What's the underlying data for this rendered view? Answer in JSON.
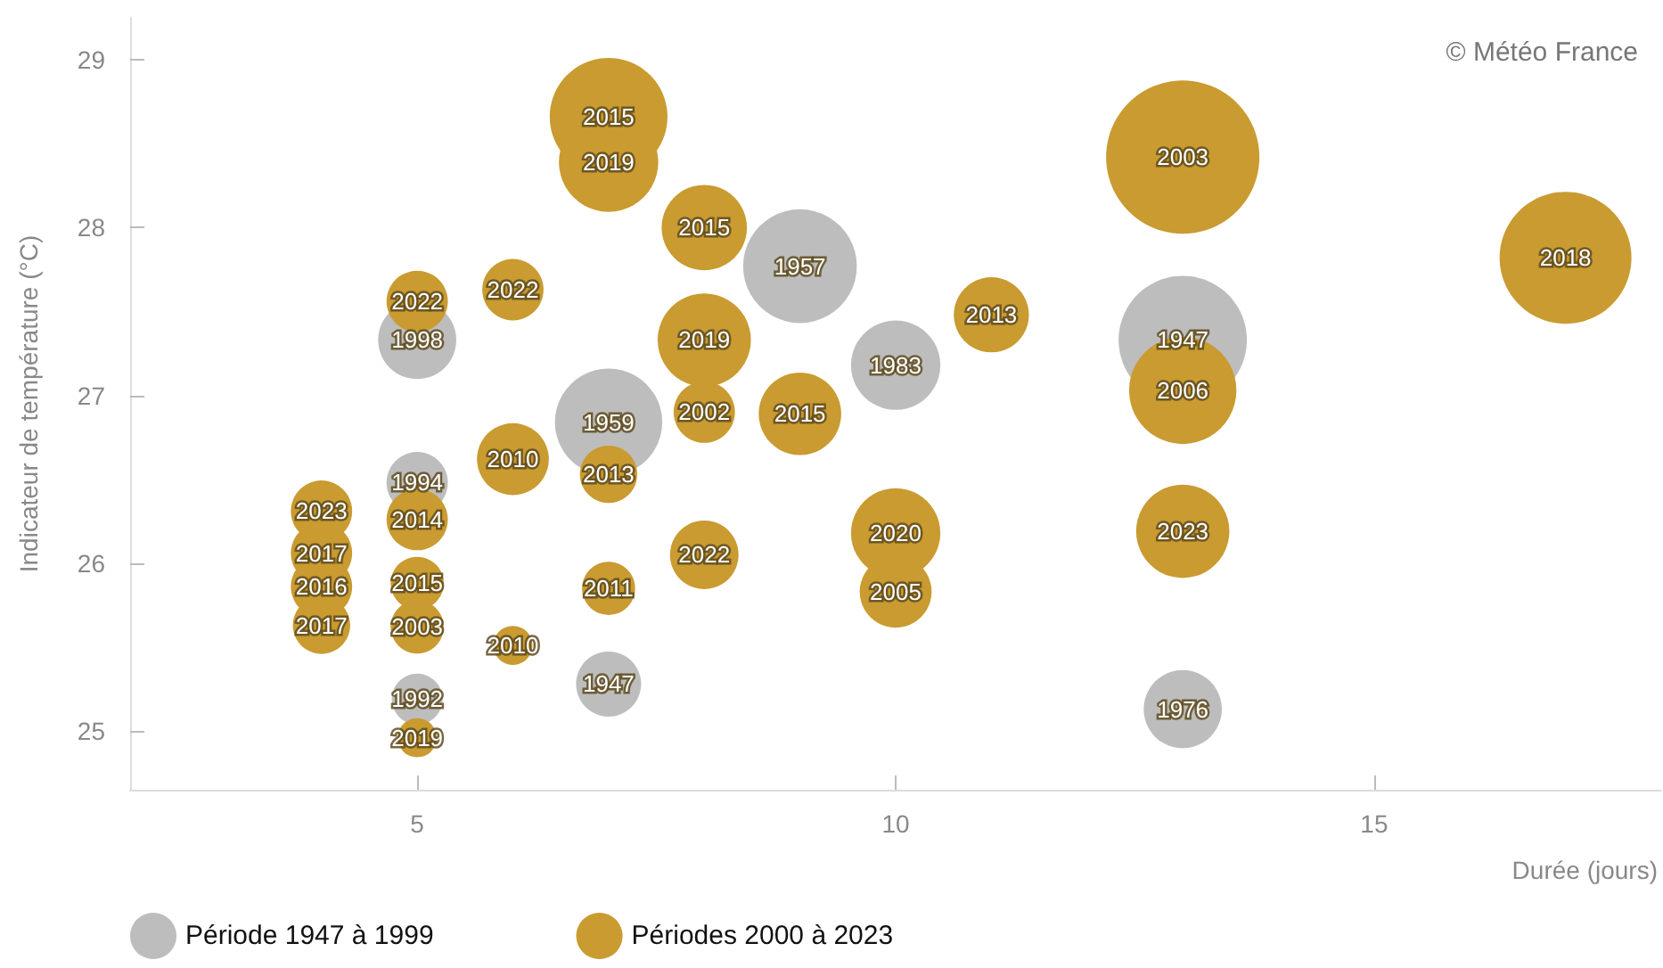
{
  "chart_data": {
    "type": "bubble",
    "xlabel": "Durée (jours)",
    "ylabel": "Indicateur de température (°C)",
    "annotations": [
      "© Météo France",
      {
        "text": "1998",
        "x": 5,
        "y": 27.33
      },
      {
        "text": "1957",
        "x": 9,
        "y": 27.77
      },
      {
        "text": "1959",
        "x": 7,
        "y": 26.84
      },
      {
        "text": "1983",
        "x": 10,
        "y": 27.18
      },
      {
        "text": "1947",
        "x": 13,
        "y": 27.33
      },
      {
        "text": "1994",
        "x": 5,
        "y": 26.48
      },
      {
        "text": "1992",
        "x": 5,
        "y": 25.19
      },
      {
        "text": "1947",
        "x": 7,
        "y": 25.28
      },
      {
        "text": "1976",
        "x": 13,
        "y": 25.13
      },
      {
        "text": "2015",
        "x": 7,
        "y": 28.66
      },
      {
        "text": "2019",
        "x": 7,
        "y": 28.39
      },
      {
        "text": "2015",
        "x": 8,
        "y": 28.0
      },
      {
        "text": "2022",
        "x": 5,
        "y": 27.56
      },
      {
        "text": "2022",
        "x": 6,
        "y": 27.63
      },
      {
        "text": "2019",
        "x": 8,
        "y": 27.33
      },
      {
        "text": "2002",
        "x": 8,
        "y": 26.9
      },
      {
        "text": "2015",
        "x": 9,
        "y": 26.89
      },
      {
        "text": "2013",
        "x": 11,
        "y": 27.48
      },
      {
        "text": "2003",
        "x": 13,
        "y": 28.42
      },
      {
        "text": "2018",
        "x": 17,
        "y": 27.82
      },
      {
        "text": "2006",
        "x": 13,
        "y": 27.03
      },
      {
        "text": "2010",
        "x": 6,
        "y": 26.62
      },
      {
        "text": "2013",
        "x": 7,
        "y": 26.53
      },
      {
        "text": "2023",
        "x": 4,
        "y": 26.31
      },
      {
        "text": "2017",
        "x": 4,
        "y": 26.06
      },
      {
        "text": "2016",
        "x": 4,
        "y": 25.86
      },
      {
        "text": "2017",
        "x": 4,
        "y": 25.63
      },
      {
        "text": "2014",
        "x": 5,
        "y": 26.26
      },
      {
        "text": "2015",
        "x": 5,
        "y": 25.88
      },
      {
        "text": "2003",
        "x": 5,
        "y": 25.62
      },
      {
        "text": "2010",
        "x": 6,
        "y": 25.51
      },
      {
        "text": "2019",
        "x": 5,
        "y": 24.96
      },
      {
        "text": "2011",
        "x": 7,
        "y": 25.85
      },
      {
        "text": "2022",
        "x": 8,
        "y": 26.05
      },
      {
        "text": "2020",
        "x": 10,
        "y": 26.18
      },
      {
        "text": "2005",
        "x": 10,
        "y": 25.83
      },
      {
        "text": "2023",
        "x": 13,
        "y": 26.19
      }
    ],
    "xlim": [
      2,
      18
    ],
    "xticks": [
      5,
      10,
      15
    ],
    "ylim": [
      24.65,
      29.25
    ],
    "yticks": [
      25,
      26,
      27,
      28,
      29
    ],
    "grid": false,
    "legend": "bottom left",
    "series": [
      {
        "name": "Période 1947 à 1999",
        "color": "#bdbdbd",
        "x": [
          5,
          9,
          7,
          10,
          13,
          5,
          5,
          7,
          13
        ],
        "values": [
          27.33,
          27.77,
          26.84,
          27.18,
          27.33,
          26.48,
          25.19,
          25.28,
          25.13
        ],
        "sizes": [
          0.26,
          0.55,
          0.49,
          0.34,
          0.7,
          0.16,
          0.11,
          0.18,
          0.26
        ]
      },
      {
        "name": "Périodes 2000 à 2023",
        "color": "#c99b30",
        "x": [
          7,
          7,
          8,
          5,
          6,
          8,
          8,
          9,
          11,
          13,
          17,
          13,
          6,
          7,
          4,
          4,
          4,
          4,
          5,
          5,
          5,
          6,
          5,
          7,
          8,
          10,
          10,
          13
        ],
        "values": [
          28.66,
          28.39,
          28.0,
          27.56,
          27.63,
          27.33,
          26.9,
          26.89,
          27.48,
          28.42,
          27.82,
          27.03,
          26.62,
          26.53,
          26.31,
          26.06,
          25.86,
          25.63,
          26.26,
          25.88,
          25.62,
          25.51,
          24.96,
          25.85,
          26.05,
          26.18,
          25.83,
          26.19
        ],
        "sizes": [
          0.59,
          0.42,
          0.31,
          0.16,
          0.16,
          0.37,
          0.16,
          0.29,
          0.24,
          1,
          0.74,
          0.49,
          0.22,
          0.14,
          0.16,
          0.16,
          0.16,
          0.14,
          0.16,
          0.12,
          0.12,
          0.065,
          0.065,
          0.12,
          0.2,
          0.34,
          0.22,
          0.37
        ]
      }
    ]
  }
}
